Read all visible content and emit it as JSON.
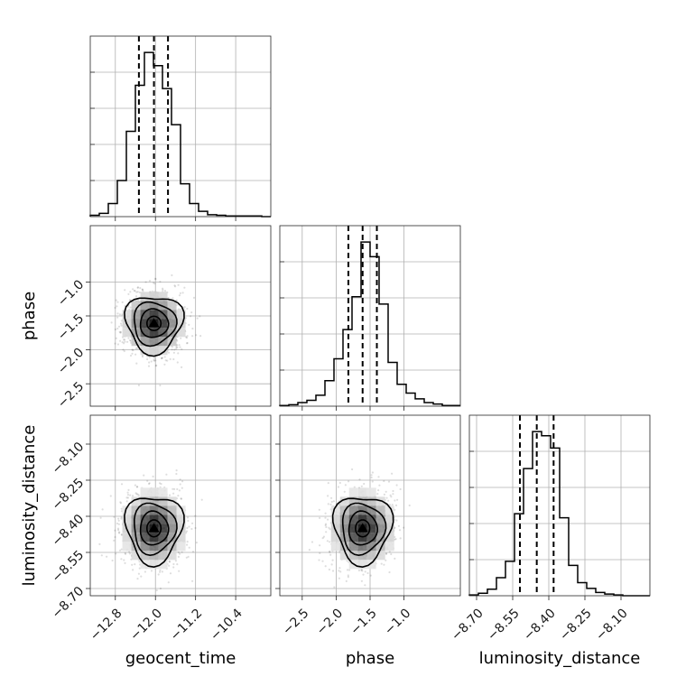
{
  "chart_data": {
    "type": "corner",
    "parameters": [
      "geocent_time",
      "phase",
      "luminosity_distance"
    ],
    "axis_ranges": {
      "geocent_time": [
        -13.3,
        -9.7
      ],
      "phase": [
        -2.83,
        -0.17
      ],
      "luminosity_distance": [
        -8.73,
        -7.98
      ]
    },
    "ticks": {
      "geocent_time": [
        -12.8,
        -12.0,
        -11.2,
        -10.4
      ],
      "phase": [
        -2.5,
        -2.0,
        -1.5,
        -1.0
      ],
      "luminosity_distance": [
        -8.7,
        -8.55,
        -8.4,
        -8.25,
        -8.1
      ]
    },
    "tick_labels": {
      "geocent_time": [
        "−12.8",
        "−12.0",
        "−11.2",
        "−10.4"
      ],
      "phase": [
        "−2.5",
        "−2.0",
        "−1.5",
        "−1.0"
      ],
      "luminosity_distance": [
        "−8.70",
        "−8.55",
        "−8.40",
        "−8.25",
        "−8.10"
      ]
    },
    "quantiles": {
      "geocent_time": [
        -12.33,
        -12.03,
        -11.75
      ],
      "phase": [
        -1.82,
        -1.61,
        -1.4
      ],
      "luminosity_distance": [
        -8.52,
        -8.45,
        -8.38
      ]
    },
    "histograms": {
      "geocent_time": {
        "bin_start": -13.3,
        "bin_width": 0.18,
        "counts": [
          2,
          5,
          20,
          55,
          130,
          200,
          250,
          230,
          195,
          140,
          50,
          20,
          8,
          3,
          2,
          1,
          1,
          1,
          1,
          0
        ]
      },
      "phase": {
        "bin_start": -2.83,
        "bin_width": 0.133,
        "counts": [
          1,
          2,
          5,
          8,
          15,
          35,
          65,
          105,
          150,
          225,
          205,
          140,
          60,
          30,
          18,
          10,
          5,
          3,
          1,
          1
        ]
      },
      "luminosity_distance": {
        "bin_start": -8.73,
        "bin_width": 0.0375,
        "counts": [
          1,
          3,
          8,
          22,
          42,
          100,
          155,
          200,
          195,
          180,
          95,
          37,
          16,
          9,
          4,
          2,
          1,
          0,
          0,
          0
        ]
      }
    },
    "centers": {
      "geocent_time": -12.03,
      "phase": -1.61,
      "luminosity_distance": -8.45
    },
    "spreads": {
      "geocent_time": 0.28,
      "phase": 0.21,
      "luminosity_distance": 0.07
    },
    "grid": true
  }
}
